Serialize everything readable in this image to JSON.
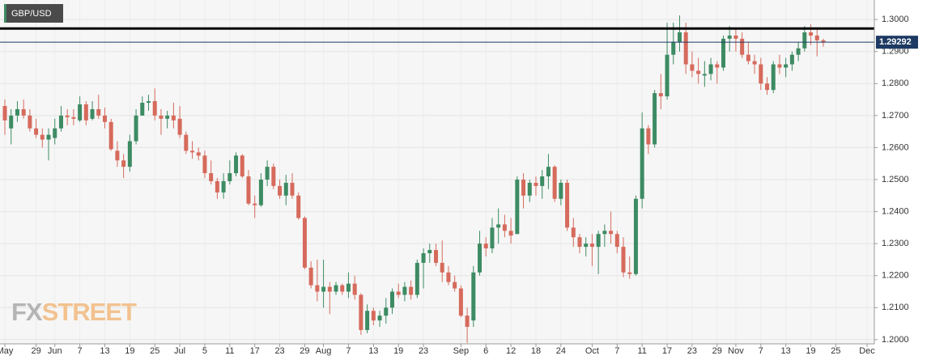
{
  "chart_data": {
    "type": "candlestick",
    "title": "GBP/USD",
    "watermark": [
      "FX",
      "STREET"
    ],
    "up_color": "#3d8b63",
    "down_color": "#d66a5c",
    "last_price": 1.29292,
    "horizontal_line": 1.2972,
    "ylim": [
      1.1987,
      1.3061
    ],
    "yticks": [
      {
        "value": 1.2,
        "label": "1.2000"
      },
      {
        "value": 1.21,
        "label": "1.2100"
      },
      {
        "value": 1.22,
        "label": "1.2200"
      },
      {
        "value": 1.23,
        "label": "1.2300"
      },
      {
        "value": 1.24,
        "label": "1.2400"
      },
      {
        "value": 1.25,
        "label": "1.2500"
      },
      {
        "value": 1.26,
        "label": "1.2600"
      },
      {
        "value": 1.27,
        "label": "1.2700"
      },
      {
        "value": 1.28,
        "label": "1.2800"
      },
      {
        "value": 1.29,
        "label": "1.2900"
      },
      {
        "value": 1.3,
        "label": "1.3000"
      }
    ],
    "grid": true,
    "x": [
      "May 22",
      "May 23",
      "May 24",
      "May 27",
      "May 28",
      "May 29",
      "May 30",
      "May 31",
      "Jun 3",
      "Jun 4",
      "Jun 5",
      "Jun 6",
      "Jun 7",
      "Jun 10",
      "Jun 11",
      "Jun 12",
      "Jun 13",
      "Jun 14",
      "Jun 17",
      "Jun 18",
      "Jun 19",
      "Jun 20",
      "Jun 21",
      "Jun 24",
      "Jun 25",
      "Jun 26",
      "Jun 27",
      "Jun 28",
      "Jul 1",
      "Jul 2",
      "Jul 3",
      "Jul 4",
      "Jul 5",
      "Jul 8",
      "Jul 9",
      "Jul 10",
      "Jul 11",
      "Jul 12",
      "Jul 15",
      "Jul 16",
      "Jul 17",
      "Jul 18",
      "Jul 19",
      "Jul 22",
      "Jul 23",
      "Jul 24",
      "Jul 25",
      "Jul 26",
      "Jul 29",
      "Jul 30",
      "Jul 31",
      "Aug 1",
      "Aug 2",
      "Aug 5",
      "Aug 6",
      "Aug 7",
      "Aug 8",
      "Aug 9",
      "Aug 12",
      "Aug 13",
      "Aug 14",
      "Aug 15",
      "Aug 16",
      "Aug 19",
      "Aug 20",
      "Aug 21",
      "Aug 22",
      "Aug 23",
      "Aug 26",
      "Aug 27",
      "Aug 28",
      "Aug 29",
      "Aug 30",
      "Sep 2",
      "Sep 3",
      "Sep 4",
      "Sep 5",
      "Sep 6",
      "Sep 9",
      "Sep 10",
      "Sep 11",
      "Sep 12",
      "Sep 13",
      "Sep 16",
      "Sep 17",
      "Sep 18",
      "Sep 19",
      "Sep 20",
      "Sep 23",
      "Sep 24",
      "Sep 25",
      "Sep 26",
      "Sep 27",
      "Sep 30",
      "Oct 1",
      "Oct 2",
      "Oct 3",
      "Oct 4",
      "Oct 7",
      "Oct 8",
      "Oct 9",
      "Oct 10",
      "Oct 11",
      "Oct 14",
      "Oct 15",
      "Oct 16",
      "Oct 17",
      "Oct 18",
      "Oct 21",
      "Oct 22",
      "Oct 23",
      "Oct 24",
      "Oct 25",
      "Oct 28",
      "Oct 29",
      "Oct 30",
      "Oct 31",
      "Nov 1",
      "Nov 4",
      "Nov 5",
      "Nov 6",
      "Nov 7",
      "Nov 8",
      "Nov 11",
      "Nov 12",
      "Nov 13",
      "Nov 14",
      "Nov 15",
      "Nov 18",
      "Nov 19",
      "Nov 20",
      "Nov 21",
      "Nov 22",
      "Nov 25",
      "Nov 26",
      "Nov 27",
      "Nov 28",
      "Nov 29",
      "Dec 2"
    ],
    "candles": [
      [
        1.273,
        1.275,
        1.264,
        1.2685
      ],
      [
        1.266,
        1.272,
        1.261,
        1.27
      ],
      [
        1.27,
        1.2745,
        1.268,
        1.272
      ],
      [
        1.272,
        1.275,
        1.269,
        1.27
      ],
      [
        1.27,
        1.272,
        1.265,
        1.266
      ],
      [
        1.266,
        1.269,
        1.263,
        1.264
      ],
      [
        1.264,
        1.266,
        1.26,
        1.2625
      ],
      [
        1.2625,
        1.266,
        1.256,
        1.264
      ],
      [
        1.263,
        1.269,
        1.261,
        1.266
      ],
      [
        1.266,
        1.273,
        1.265,
        1.27
      ],
      [
        1.27,
        1.272,
        1.267,
        1.2695
      ],
      [
        1.2695,
        1.272,
        1.267,
        1.269
      ],
      [
        1.2685,
        1.276,
        1.268,
        1.2735
      ],
      [
        1.2735,
        1.2745,
        1.267,
        1.2685
      ],
      [
        1.269,
        1.2745,
        1.2685,
        1.272
      ],
      [
        1.272,
        1.2765,
        1.269,
        1.27
      ],
      [
        1.27,
        1.2725,
        1.266,
        1.268
      ],
      [
        1.268,
        1.269,
        1.259,
        1.2595
      ],
      [
        1.259,
        1.262,
        1.254,
        1.256
      ],
      [
        1.256,
        1.258,
        1.2505,
        1.254
      ],
      [
        1.254,
        1.264,
        1.2525,
        1.262
      ],
      [
        1.262,
        1.272,
        1.261,
        1.27
      ],
      [
        1.27,
        1.276,
        1.27,
        1.274
      ],
      [
        1.274,
        1.2765,
        1.2715,
        1.2745
      ],
      [
        1.2745,
        1.2785,
        1.2685,
        1.27
      ],
      [
        1.27,
        1.272,
        1.264,
        1.269
      ],
      [
        1.269,
        1.2715,
        1.266,
        1.27
      ],
      [
        1.27,
        1.274,
        1.266,
        1.2685
      ],
      [
        1.269,
        1.273,
        1.263,
        1.264
      ],
      [
        1.264,
        1.265,
        1.258,
        1.259
      ],
      [
        1.259,
        1.262,
        1.2565,
        1.2585
      ],
      [
        1.2585,
        1.26,
        1.256,
        1.2575
      ],
      [
        1.2575,
        1.259,
        1.2505,
        1.252
      ],
      [
        1.252,
        1.256,
        1.2485,
        1.2495
      ],
      [
        1.2495,
        1.2505,
        1.244,
        1.246
      ],
      [
        1.246,
        1.252,
        1.244,
        1.2495
      ],
      [
        1.2495,
        1.256,
        1.2485,
        1.252
      ],
      [
        1.252,
        1.2585,
        1.251,
        1.2575
      ],
      [
        1.2575,
        1.258,
        1.2505,
        1.251
      ],
      [
        1.251,
        1.253,
        1.242,
        1.2425
      ],
      [
        1.2425,
        1.245,
        1.238,
        1.242
      ],
      [
        1.242,
        1.252,
        1.2415,
        1.25
      ],
      [
        1.25,
        1.256,
        1.248,
        1.254
      ],
      [
        1.254,
        1.255,
        1.247,
        1.248
      ],
      [
        1.248,
        1.25,
        1.244,
        1.245
      ],
      [
        1.245,
        1.2515,
        1.242,
        1.249
      ],
      [
        1.249,
        1.252,
        1.244,
        1.245
      ],
      [
        1.245,
        1.246,
        1.2375,
        1.238
      ],
      [
        1.238,
        1.2385,
        1.222,
        1.2225
      ],
      [
        1.2225,
        1.2245,
        1.216,
        1.217
      ],
      [
        1.217,
        1.225,
        1.212,
        1.215
      ],
      [
        1.215,
        1.225,
        1.21,
        1.2165
      ],
      [
        1.2165,
        1.218,
        1.208,
        1.215
      ],
      [
        1.215,
        1.218,
        1.214,
        1.217
      ],
      [
        1.217,
        1.2175,
        1.214,
        1.215
      ],
      [
        1.215,
        1.221,
        1.213,
        1.2175
      ],
      [
        1.2175,
        1.22,
        1.2125,
        1.214
      ],
      [
        1.214,
        1.2145,
        1.2015,
        1.203
      ],
      [
        1.203,
        1.211,
        1.202,
        1.209
      ],
      [
        1.209,
        1.21,
        1.2045,
        1.206
      ],
      [
        1.206,
        1.209,
        1.204,
        1.2075
      ],
      [
        1.2075,
        1.213,
        1.205,
        1.21
      ],
      [
        1.21,
        1.216,
        1.208,
        1.215
      ],
      [
        1.215,
        1.2175,
        1.213,
        1.214
      ],
      [
        1.214,
        1.218,
        1.212,
        1.2165
      ],
      [
        1.2165,
        1.2185,
        1.2125,
        1.214
      ],
      [
        1.214,
        1.225,
        1.213,
        1.224
      ],
      [
        1.224,
        1.2285,
        1.216,
        1.227
      ],
      [
        1.227,
        1.23,
        1.224,
        1.228
      ],
      [
        1.228,
        1.23,
        1.223,
        1.224
      ],
      [
        1.224,
        1.231,
        1.218,
        1.221
      ],
      [
        1.221,
        1.223,
        1.217,
        1.218
      ],
      [
        1.218,
        1.22,
        1.215,
        1.216
      ],
      [
        1.216,
        1.217,
        1.207,
        1.2075
      ],
      [
        1.2075,
        1.21,
        1.199,
        1.204
      ],
      [
        1.206,
        1.223,
        1.204,
        1.221
      ],
      [
        1.221,
        1.234,
        1.22,
        1.23
      ],
      [
        1.23,
        1.232,
        1.226,
        1.2285
      ],
      [
        1.2285,
        1.238,
        1.227,
        1.235
      ],
      [
        1.235,
        1.241,
        1.23,
        1.236
      ],
      [
        1.236,
        1.239,
        1.232,
        1.234
      ],
      [
        1.234,
        1.238,
        1.23,
        1.2325
      ],
      [
        1.233,
        1.251,
        1.233,
        1.25
      ],
      [
        1.25,
        1.252,
        1.241,
        1.245
      ],
      [
        1.245,
        1.25,
        1.243,
        1.249
      ],
      [
        1.249,
        1.251,
        1.245,
        1.248
      ],
      [
        1.248,
        1.253,
        1.244,
        1.251
      ],
      [
        1.251,
        1.258,
        1.247,
        1.254
      ],
      [
        1.254,
        1.2545,
        1.243,
        1.244
      ],
      [
        1.244,
        1.25,
        1.242,
        1.249
      ],
      [
        1.249,
        1.25,
        1.234,
        1.235
      ],
      [
        1.235,
        1.238,
        1.229,
        1.232
      ],
      [
        1.232,
        1.233,
        1.227,
        1.229
      ],
      [
        1.229,
        1.232,
        1.226,
        1.23
      ],
      [
        1.23,
        1.233,
        1.223,
        1.229
      ],
      [
        1.229,
        1.234,
        1.2205,
        1.233
      ],
      [
        1.233,
        1.236,
        1.229,
        1.234
      ],
      [
        1.234,
        1.24,
        1.23,
        1.233
      ],
      [
        1.233,
        1.234,
        1.227,
        1.229
      ],
      [
        1.229,
        1.232,
        1.2195,
        1.221
      ],
      [
        1.221,
        1.226,
        1.219,
        1.2205
      ],
      [
        1.2205,
        1.245,
        1.22,
        1.244
      ],
      [
        1.244,
        1.271,
        1.241,
        1.266
      ],
      [
        1.266,
        1.267,
        1.258,
        1.261
      ],
      [
        1.261,
        1.278,
        1.26,
        1.277
      ],
      [
        1.277,
        1.283,
        1.272,
        1.276
      ],
      [
        1.276,
        1.299,
        1.275,
        1.289
      ],
      [
        1.289,
        1.299,
        1.286,
        1.293
      ],
      [
        1.293,
        1.3013,
        1.29,
        1.296
      ],
      [
        1.296,
        1.299,
        1.283,
        1.286
      ],
      [
        1.286,
        1.29,
        1.282,
        1.284
      ],
      [
        1.284,
        1.288,
        1.28,
        1.283
      ],
      [
        1.2825,
        1.287,
        1.279,
        1.283
      ],
      [
        1.283,
        1.288,
        1.281,
        1.286
      ],
      [
        1.286,
        1.287,
        1.28,
        1.285
      ],
      [
        1.285,
        1.295,
        1.284,
        1.294
      ],
      [
        1.294,
        1.298,
        1.29,
        1.295
      ],
      [
        1.295,
        1.2975,
        1.29,
        1.294
      ],
      [
        1.294,
        1.296,
        1.288,
        1.289
      ],
      [
        1.289,
        1.293,
        1.286,
        1.287
      ],
      [
        1.287,
        1.289,
        1.283,
        1.286
      ],
      [
        1.286,
        1.288,
        1.278,
        1.28
      ],
      [
        1.28,
        1.282,
        1.2765,
        1.278
      ],
      [
        1.278,
        1.287,
        1.277,
        1.286
      ],
      [
        1.286,
        1.289,
        1.283,
        1.285
      ],
      [
        1.285,
        1.288,
        1.282,
        1.286
      ],
      [
        1.286,
        1.29,
        1.284,
        1.289
      ],
      [
        1.289,
        1.293,
        1.287,
        1.291
      ],
      [
        1.291,
        1.298,
        1.29,
        1.296
      ],
      [
        1.296,
        1.2985,
        1.292,
        1.295
      ],
      [
        1.295,
        1.297,
        1.2885,
        1.2935
      ],
      [
        1.2935,
        1.294,
        1.2915,
        1.2929
      ],
      null,
      null,
      null,
      null,
      null,
      null,
      null
    ],
    "xticks": [
      {
        "value": "May 22",
        "label": "May"
      },
      {
        "value": "May 29",
        "label": "29"
      },
      {
        "value": "Jun 3",
        "label": "Jun"
      },
      {
        "value": "Jun 7",
        "label": "7"
      },
      {
        "value": "Jun 13",
        "label": "13"
      },
      {
        "value": "Jun 19",
        "label": "19"
      },
      {
        "value": "Jun 25",
        "label": "25"
      },
      {
        "value": "Jul 1",
        "label": "Jul"
      },
      {
        "value": "Jul 5",
        "label": "5"
      },
      {
        "value": "Jul 11",
        "label": "11"
      },
      {
        "value": "Jul 17",
        "label": "17"
      },
      {
        "value": "Jul 23",
        "label": "23"
      },
      {
        "value": "Jul 29",
        "label": "29"
      },
      {
        "value": "Aug 1",
        "label": "Aug"
      },
      {
        "value": "Aug 7",
        "label": "7"
      },
      {
        "value": "Aug 13",
        "label": "13"
      },
      {
        "value": "Aug 19",
        "label": "19"
      },
      {
        "value": "Aug 23",
        "label": "23"
      },
      {
        "value": "Sep 2",
        "label": "Sep"
      },
      {
        "value": "Sep 6",
        "label": "6"
      },
      {
        "value": "Sep 12",
        "label": "12"
      },
      {
        "value": "Sep 18",
        "label": "18"
      },
      {
        "value": "Sep 24",
        "label": "24"
      },
      {
        "value": "Oct 1",
        "label": "Oct"
      },
      {
        "value": "Oct 7",
        "label": "7"
      },
      {
        "value": "Oct 11",
        "label": "11"
      },
      {
        "value": "Oct 17",
        "label": "17"
      },
      {
        "value": "Oct 23",
        "label": "23"
      },
      {
        "value": "Oct 29",
        "label": "29"
      },
      {
        "value": "Nov 1",
        "label": "Nov"
      },
      {
        "value": "Nov 7",
        "label": "7"
      },
      {
        "value": "Nov 13",
        "label": "13"
      },
      {
        "value": "Nov 19",
        "label": "19"
      },
      {
        "value": "Nov 25",
        "label": "25"
      },
      {
        "value": "Dec 2",
        "label": "Dec"
      }
    ]
  }
}
